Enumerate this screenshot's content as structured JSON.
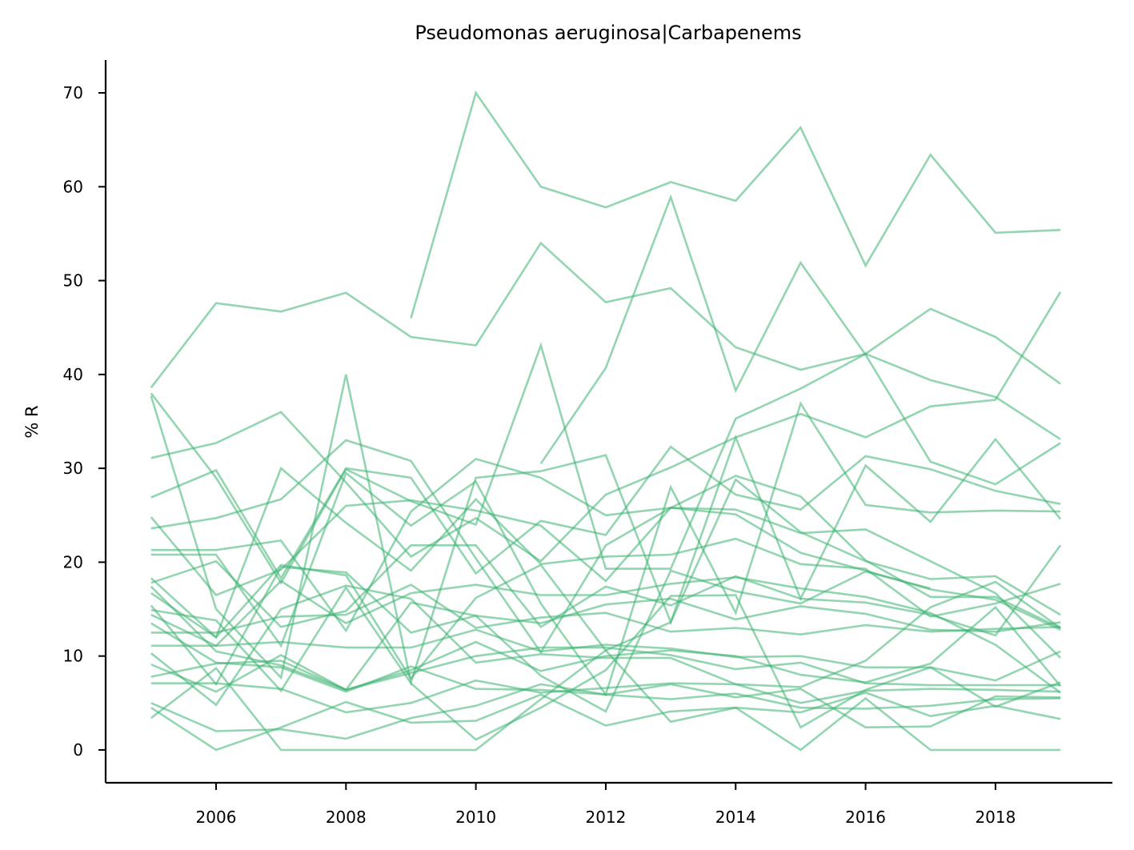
{
  "chart_data": {
    "type": "line",
    "title": "Pseudomonas aeruginosa|Carbapenems",
    "xlabel": "",
    "ylabel": "% R",
    "xlim": [
      2004.3,
      2019.8
    ],
    "ylim": [
      -3.5,
      73.5
    ],
    "xticks": [
      2006,
      2008,
      2010,
      2012,
      2014,
      2016,
      2018
    ],
    "yticks": [
      0,
      10,
      20,
      30,
      40,
      50,
      60,
      70
    ],
    "grid": false,
    "legend": "none",
    "line_color": "#3cb371",
    "x": [
      2005,
      2006,
      2007,
      2008,
      2009,
      2010,
      2011,
      2012,
      2013,
      2014,
      2015,
      2016,
      2017,
      2018,
      2019
    ],
    "series": [
      {
        "values": [
          null,
          null,
          null,
          null,
          46.0,
          70.0,
          60.0,
          57.8,
          60.5,
          58.5,
          66.3,
          51.6,
          63.4,
          55.1,
          55.4
        ]
      },
      {
        "values": [
          38.6,
          47.6,
          46.7,
          48.7,
          44.0,
          43.1,
          54.0,
          47.7,
          49.2,
          42.9,
          40.5,
          42.2,
          39.4,
          37.6,
          33.1
        ]
      },
      {
        "values": [
          null,
          null,
          null,
          null,
          null,
          null,
          30.5,
          40.7,
          58.9,
          38.3,
          51.9,
          42.1,
          30.7,
          28.3,
          32.7
        ]
      },
      {
        "values": [
          38.0,
          29.0,
          17.8,
          29.9,
          26.5,
          24.0,
          43.1,
          19.3,
          19.3,
          35.3,
          38.5,
          42.2,
          47.0,
          44.0,
          39.0
        ]
      },
      {
        "values": [
          37.7,
          15.0,
          7.7,
          40.0,
          7.2,
          29.0,
          29.7,
          31.4,
          13.6,
          33.3,
          16.1,
          30.3,
          24.3,
          33.1,
          24.6
        ]
      },
      {
        "values": [
          31.1,
          32.7,
          36.0,
          28.5,
          20.6,
          24.7,
          20.1,
          27.2,
          30.1,
          33.3,
          35.8,
          33.3,
          36.6,
          37.3,
          48.8
        ]
      },
      {
        "values": [
          26.9,
          29.8,
          18.3,
          30.0,
          29.0,
          18.8,
          24.4,
          22.9,
          32.3,
          27.2,
          25.6,
          31.3,
          29.9,
          27.6,
          26.2
        ]
      },
      {
        "values": [
          23.6,
          24.7,
          26.7,
          33.0,
          30.8,
          20.4,
          10.4,
          21.8,
          25.8,
          25.6,
          23.1,
          23.5,
          20.1,
          16.7,
          9.8
        ]
      },
      {
        "values": [
          24.8,
          16.5,
          19.2,
          26.0,
          26.6,
          25.5,
          23.9,
          18.0,
          25.8,
          29.2,
          27.0,
          20.2,
          16.3,
          16.3,
          13.0
        ]
      },
      {
        "values": [
          21.3,
          21.3,
          22.3,
          12.7,
          25.4,
          31.0,
          29.0,
          25.0,
          25.8,
          25.1,
          21.0,
          19.1,
          17.1,
          16.0,
          12.8
        ]
      },
      {
        "values": [
          20.8,
          20.8,
          11.1,
          29.5,
          23.9,
          28.6,
          15.6,
          5.9,
          28.0,
          14.6,
          36.9,
          26.1,
          25.3,
          25.5,
          25.4
        ]
      },
      {
        "values": [
          18.3,
          12.0,
          30.0,
          24.2,
          19.1,
          26.7,
          19.8,
          20.6,
          20.8,
          22.5,
          19.8,
          19.3,
          14.2,
          15.6,
          17.7
        ]
      },
      {
        "values": [
          17.8,
          20.1,
          13.1,
          14.8,
          21.8,
          21.8,
          13.1,
          17.4,
          15.4,
          18.5,
          16.1,
          15.7,
          14.4,
          12.2,
          21.8
        ]
      },
      {
        "values": [
          17.4,
          10.5,
          9.0,
          6.4,
          15.7,
          14.3,
          13.5,
          15.5,
          16.1,
          13.9,
          15.3,
          14.5,
          12.8,
          12.6,
          13.6
        ]
      },
      {
        "values": [
          16.7,
          12.0,
          19.7,
          18.6,
          7.6,
          16.2,
          19.7,
          10.6,
          13.6,
          28.8,
          23.2,
          20.1,
          18.2,
          18.5,
          14.4
        ]
      },
      {
        "values": [
          15.4,
          7.0,
          19.5,
          18.9,
          12.5,
          14.3,
          7.9,
          4.1,
          19.1,
          16.9,
          15.6,
          19.0,
          17.2,
          null,
          null
        ]
      },
      {
        "values": [
          14.4,
          11.1,
          18.0,
          13.5,
          16.7,
          17.6,
          16.5,
          16.5,
          17.7,
          18.4,
          17.2,
          16.3,
          14.6,
          11.2,
          6.1
        ]
      },
      {
        "values": [
          12.5,
          12.5,
          14.2,
          14.4,
          17.6,
          13.0,
          14.1,
          14.6,
          12.6,
          13.0,
          12.3,
          13.3,
          12.6,
          12.9,
          13.1
        ]
      },
      {
        "values": [
          11.1,
          11.1,
          11.5,
          10.9,
          10.9,
          12.8,
          10.5,
          11.2,
          10.8,
          9.9,
          10.0,
          8.8,
          8.8,
          7.4,
          10.5
        ]
      },
      {
        "values": [
          10.3,
          4.8,
          15.0,
          17.5,
          16.1,
          9.3,
          10.2,
          9.8,
          9.8,
          7.0,
          6.7,
          9.5,
          15.2,
          17.9,
          13.0
        ]
      },
      {
        "values": [
          9.1,
          6.2,
          10.1,
          6.4,
          8.5,
          11.5,
          8.4,
          10.0,
          10.6,
          10.0,
          8.0,
          7.2,
          9.2,
          15.2,
          6.8
        ]
      },
      {
        "values": [
          7.8,
          9.2,
          9.5,
          6.4,
          8.2,
          10.0,
          10.9,
          10.9,
          10.1,
          8.6,
          9.3,
          7.1,
          6.9,
          6.9,
          6.9
        ]
      },
      {
        "values": [
          7.1,
          7.1,
          6.5,
          4.0,
          5.0,
          7.4,
          6.1,
          6.6,
          7.1,
          7.0,
          5.0,
          6.3,
          6.5,
          6.4,
          6.2
        ]
      },
      {
        "values": [
          5.0,
          2.0,
          2.2,
          1.2,
          3.4,
          4.7,
          7.0,
          5.9,
          7.0,
          5.6,
          6.5,
          2.4,
          2.5,
          5.7,
          5.6
        ]
      },
      {
        "values": [
          3.4,
          8.7,
          0.0,
          0.0,
          0.0,
          0.0,
          5.4,
          10.6,
          3.0,
          4.5,
          0.0,
          5.5,
          0.0,
          0.0,
          0.0
        ]
      },
      {
        "values": [
          4.5,
          0.0,
          2.4,
          5.1,
          2.9,
          3.1,
          5.9,
          2.6,
          4.1,
          4.5,
          4.0,
          6.1,
          3.6,
          4.7,
          3.3
        ]
      },
      {
        "values": [
          13.5,
          9.3,
          8.8,
          6.2,
          8.9,
          6.5,
          6.4,
          5.9,
          5.4,
          6.0,
          4.5,
          4.4,
          4.7,
          5.4,
          5.5
        ]
      },
      {
        "values": [
          14.9,
          13.8,
          6.3,
          17.3,
          7.1,
          1.1,
          4.5,
          8.5,
          16.4,
          16.5,
          2.4,
          6.4,
          8.8,
          4.6,
          7.2
        ]
      }
    ]
  }
}
